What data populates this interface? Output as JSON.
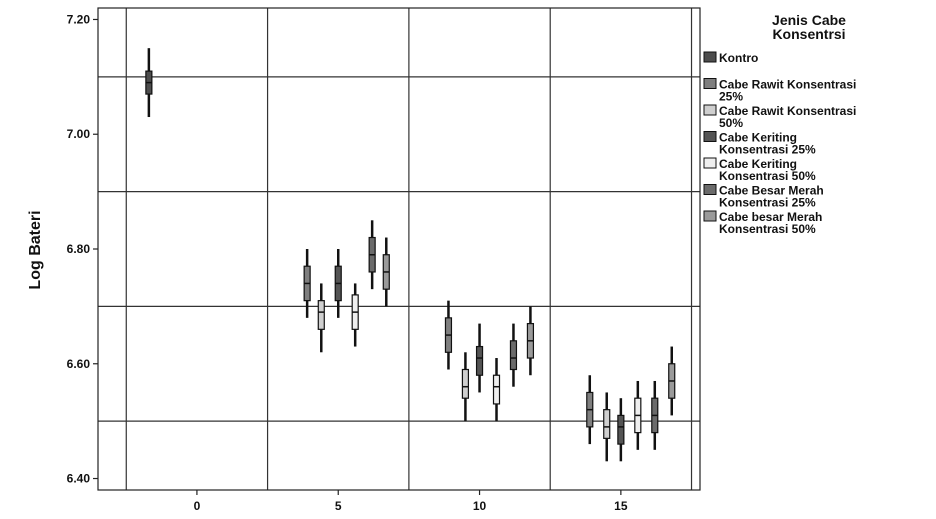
{
  "chart_data": {
    "type": "boxplot",
    "ylabel": "Log Bateri",
    "ylim": [
      6.38,
      7.22
    ],
    "xlim": [
      -3.5,
      17.8
    ],
    "yticks": [
      "6.40",
      "6.60",
      "6.80",
      "7.00",
      "7.20"
    ],
    "yticks_values": [
      6.4,
      6.6,
      6.8,
      7.0,
      7.2
    ],
    "xticks": [
      "0",
      "5",
      "10",
      "15"
    ],
    "xticks_values": [
      0,
      5,
      10,
      15
    ],
    "x_gridlines": [
      -2.5,
      2.5,
      7.5,
      12.5,
      17.5
    ],
    "y_gridlines": [
      6.5,
      6.7,
      6.9,
      7.1
    ],
    "grid": true,
    "legend": {
      "title_line1": "Jenis Cabe",
      "title_line2": "Konsentrsi",
      "position": "right",
      "items": [
        {
          "line1": "Kontro",
          "line2": "",
          "color": "#4d4d4d"
        },
        {
          "line1": "Cabe Rawit Konsentrasi",
          "line2": "25%",
          "color": "#7f7f7f"
        },
        {
          "line1": "Cabe Rawit Konsentrasi",
          "line2": "50%",
          "color": "#cfcfcf"
        },
        {
          "line1": "Cabe Keriting",
          "line2": "Konsentrasi 25%",
          "color": "#545454"
        },
        {
          "line1": "Cabe Keriting",
          "line2": "Konsentrasi 50%",
          "color": "#efefef"
        },
        {
          "line1": "Cabe Besar Merah",
          "line2": "Konsentrasi 25%",
          "color": "#6b6b6b"
        },
        {
          "line1": "Cabe besar Merah",
          "line2": "Konsentrasi 50%",
          "color": "#9a9a9a"
        }
      ]
    },
    "series": [
      {
        "group": 0,
        "x": -1.7,
        "box": [
          7.03,
          7.07,
          7.09,
          7.11,
          7.15
        ],
        "color": "#4d4d4d"
      },
      {
        "group": 1,
        "x": 3.9,
        "box": [
          6.68,
          6.71,
          6.74,
          6.77,
          6.8
        ],
        "color": "#7f7f7f"
      },
      {
        "group": 2,
        "x": 4.4,
        "box": [
          6.62,
          6.66,
          6.69,
          6.71,
          6.74
        ],
        "color": "#cfcfcf"
      },
      {
        "group": 3,
        "x": 5.0,
        "box": [
          6.68,
          6.71,
          6.74,
          6.77,
          6.8
        ],
        "color": "#545454"
      },
      {
        "group": 4,
        "x": 5.6,
        "box": [
          6.63,
          6.66,
          6.69,
          6.72,
          6.74
        ],
        "color": "#efefef"
      },
      {
        "group": 5,
        "x": 6.2,
        "box": [
          6.73,
          6.76,
          6.79,
          6.82,
          6.85
        ],
        "color": "#6b6b6b"
      },
      {
        "group": 6,
        "x": 6.7,
        "box": [
          6.7,
          6.73,
          6.76,
          6.79,
          6.82
        ],
        "color": "#9a9a9a"
      },
      {
        "group": 1,
        "x": 8.9,
        "box": [
          6.59,
          6.62,
          6.65,
          6.68,
          6.71
        ],
        "color": "#7f7f7f"
      },
      {
        "group": 2,
        "x": 9.5,
        "box": [
          6.5,
          6.54,
          6.56,
          6.59,
          6.62
        ],
        "color": "#cfcfcf"
      },
      {
        "group": 3,
        "x": 10.0,
        "box": [
          6.55,
          6.58,
          6.61,
          6.63,
          6.67
        ],
        "color": "#545454"
      },
      {
        "group": 4,
        "x": 10.6,
        "box": [
          6.5,
          6.53,
          6.56,
          6.58,
          6.61
        ],
        "color": "#efefef"
      },
      {
        "group": 5,
        "x": 11.2,
        "box": [
          6.56,
          6.59,
          6.61,
          6.64,
          6.67
        ],
        "color": "#6b6b6b"
      },
      {
        "group": 6,
        "x": 11.8,
        "box": [
          6.58,
          6.61,
          6.64,
          6.67,
          6.7
        ],
        "color": "#9a9a9a"
      },
      {
        "group": 1,
        "x": 13.9,
        "box": [
          6.46,
          6.49,
          6.52,
          6.55,
          6.58
        ],
        "color": "#7f7f7f"
      },
      {
        "group": 2,
        "x": 14.5,
        "box": [
          6.43,
          6.47,
          6.49,
          6.52,
          6.55
        ],
        "color": "#cfcfcf"
      },
      {
        "group": 3,
        "x": 15.0,
        "box": [
          6.43,
          6.46,
          6.49,
          6.51,
          6.54
        ],
        "color": "#545454"
      },
      {
        "group": 4,
        "x": 15.6,
        "box": [
          6.45,
          6.48,
          6.51,
          6.54,
          6.57
        ],
        "color": "#efefef"
      },
      {
        "group": 5,
        "x": 16.2,
        "box": [
          6.45,
          6.48,
          6.51,
          6.54,
          6.57
        ],
        "color": "#6b6b6b"
      },
      {
        "group": 6,
        "x": 16.8,
        "box": [
          6.51,
          6.54,
          6.57,
          6.6,
          6.63
        ],
        "color": "#9a9a9a"
      }
    ]
  }
}
